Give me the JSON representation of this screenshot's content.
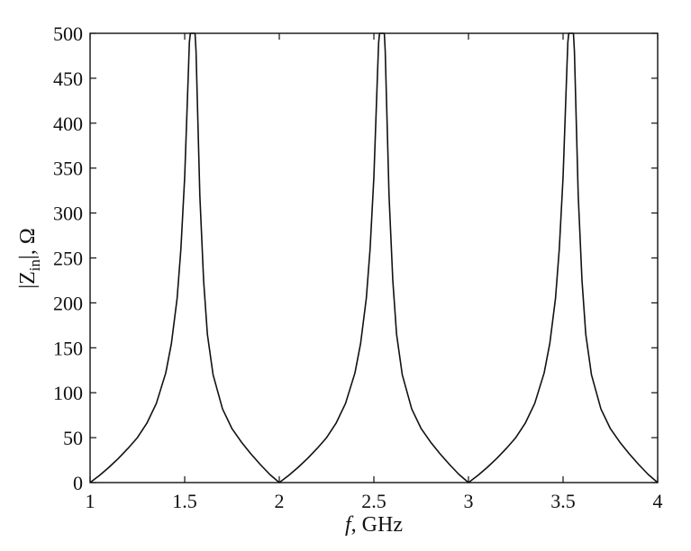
{
  "chart_data": {
    "type": "line",
    "title": "",
    "xlabel_italic": "f",
    "xlabel_rest": ", GHz",
    "ylabel_pre": "|Z",
    "ylabel_sub": "in",
    "ylabel_post": "|, Ω",
    "xlim": [
      1,
      4
    ],
    "ylim": [
      0,
      500
    ],
    "grid": false,
    "x_ticks": [
      1,
      1.5,
      2,
      2.5,
      3,
      3.5,
      4
    ],
    "x_tick_labels": [
      "1",
      "1.5",
      "2",
      "2.5",
      "3",
      "3.5",
      "4"
    ],
    "y_ticks": [
      0,
      50,
      100,
      150,
      200,
      250,
      300,
      350,
      400,
      450,
      500
    ],
    "y_tick_labels": [
      "0",
      "50",
      "100",
      "150",
      "200",
      "250",
      "300",
      "350",
      "400",
      "450",
      "500"
    ],
    "series": [
      {
        "color": "#111111",
        "x": [
          1.0,
          1.05,
          1.1,
          1.15,
          1.2,
          1.25,
          1.3,
          1.35,
          1.4,
          1.43,
          1.46,
          1.48,
          1.5,
          1.51,
          1.52,
          1.525,
          1.53,
          1.555,
          1.56,
          1.57,
          1.58,
          1.6,
          1.62,
          1.65,
          1.7,
          1.75,
          1.8,
          1.85,
          1.9,
          1.95,
          2.0,
          2.05,
          2.1,
          2.15,
          2.2,
          2.25,
          2.3,
          2.35,
          2.4,
          2.43,
          2.46,
          2.48,
          2.5,
          2.51,
          2.52,
          2.525,
          2.53,
          2.555,
          2.56,
          2.57,
          2.58,
          2.6,
          2.62,
          2.65,
          2.7,
          2.75,
          2.8,
          2.85,
          2.9,
          2.95,
          3.0,
          3.05,
          3.1,
          3.15,
          3.2,
          3.25,
          3.3,
          3.35,
          3.4,
          3.43,
          3.46,
          3.48,
          3.5,
          3.51,
          3.52,
          3.525,
          3.53,
          3.555,
          3.56,
          3.57,
          3.58,
          3.6,
          3.62,
          3.65,
          3.7,
          3.75,
          3.8,
          3.85,
          3.9,
          3.95,
          4.0
        ],
        "y": [
          0,
          8,
          17,
          27,
          38,
          50,
          66,
          88,
          122,
          155,
          205,
          260,
          340,
          400,
          460,
          490,
          500,
          500,
          480,
          400,
          320,
          225,
          165,
          120,
          82,
          60,
          45,
          32,
          20,
          9,
          0,
          8,
          17,
          27,
          38,
          50,
          66,
          88,
          122,
          155,
          205,
          260,
          340,
          400,
          460,
          490,
          500,
          500,
          480,
          400,
          320,
          225,
          165,
          120,
          82,
          60,
          45,
          32,
          20,
          9,
          0,
          8,
          17,
          27,
          38,
          50,
          66,
          88,
          122,
          155,
          205,
          260,
          340,
          400,
          460,
          490,
          500,
          500,
          480,
          400,
          320,
          225,
          165,
          120,
          82,
          60,
          45,
          32,
          20,
          9,
          0
        ]
      }
    ]
  }
}
